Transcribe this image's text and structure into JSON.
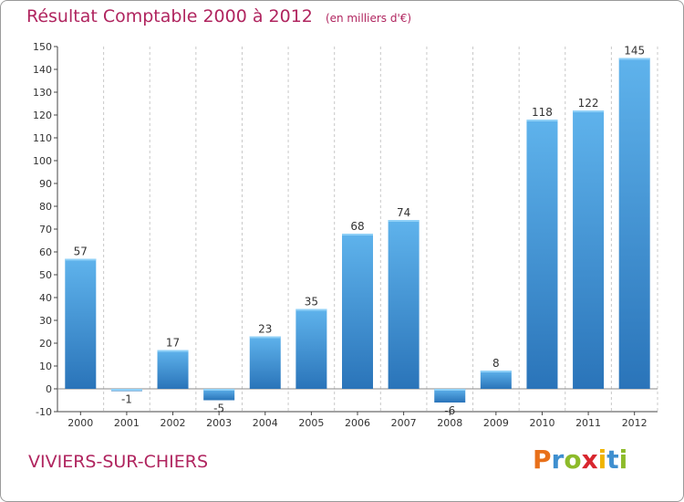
{
  "header": {
    "title": "Résultat Comptable 2000 à 2012",
    "subtitle": "(en milliers d'€)"
  },
  "footer": {
    "town": "VIVIERS-SUR-CHIERS",
    "logo_letters": [
      "P",
      "r",
      "o",
      "x",
      "i",
      "t",
      "i"
    ],
    "logo_colors": [
      "#e8701a",
      "#3f8fcf",
      "#8dbb2a",
      "#d8262e",
      "#f0b400",
      "#3f8fcf",
      "#8dbb2a"
    ]
  },
  "chart_data": {
    "type": "bar",
    "title": "Résultat Comptable 2000 à 2012",
    "subtitle": "(en milliers d'€)",
    "xlabel": "",
    "ylabel": "",
    "categories": [
      "2000",
      "2001",
      "2002",
      "2003",
      "2004",
      "2005",
      "2006",
      "2007",
      "2008",
      "2009",
      "2010",
      "2011",
      "2012"
    ],
    "values": [
      57,
      -1,
      17,
      -5,
      23,
      35,
      68,
      74,
      -6,
      8,
      118,
      122,
      145
    ],
    "ylim": [
      -10,
      150
    ],
    "yticks": [
      -10,
      0,
      10,
      20,
      30,
      40,
      50,
      60,
      70,
      80,
      90,
      100,
      110,
      120,
      130,
      140,
      150
    ],
    "grid": "vertical-dashed",
    "bar_color": "#3a8fd6",
    "bar_color_light": "#5aaee8",
    "bar_color_dark": "#2a72b8"
  }
}
